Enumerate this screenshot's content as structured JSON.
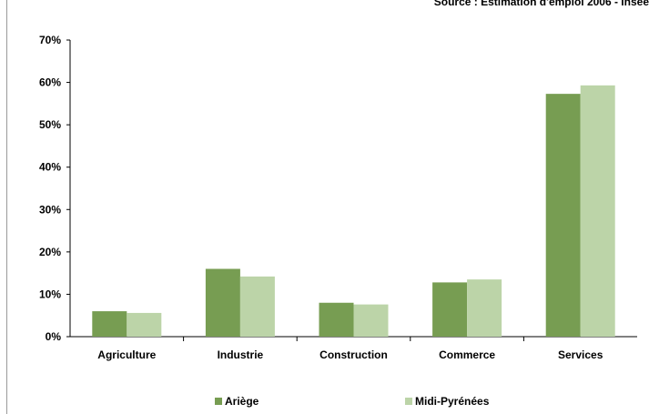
{
  "source_note": "Source : Estimation d'emploi 2006 - Insee",
  "chart_data": {
    "type": "bar",
    "categories": [
      "Agriculture",
      "Industrie",
      "Construction",
      "Commerce",
      "Services"
    ],
    "series": [
      {
        "name": "Ariège",
        "values": [
          6.0,
          16.0,
          8.0,
          12.8,
          57.3
        ],
        "color": "#779d52"
      },
      {
        "name": "Midi-Pyrénées",
        "values": [
          5.6,
          14.2,
          7.6,
          13.5,
          59.3
        ],
        "color": "#bcd4a8"
      }
    ],
    "y_ticks": [
      "0%",
      "10%",
      "20%",
      "30%",
      "40%",
      "50%",
      "60%",
      "70%"
    ],
    "ylim": [
      0,
      70
    ],
    "grid": false,
    "legend_position": "bottom"
  }
}
